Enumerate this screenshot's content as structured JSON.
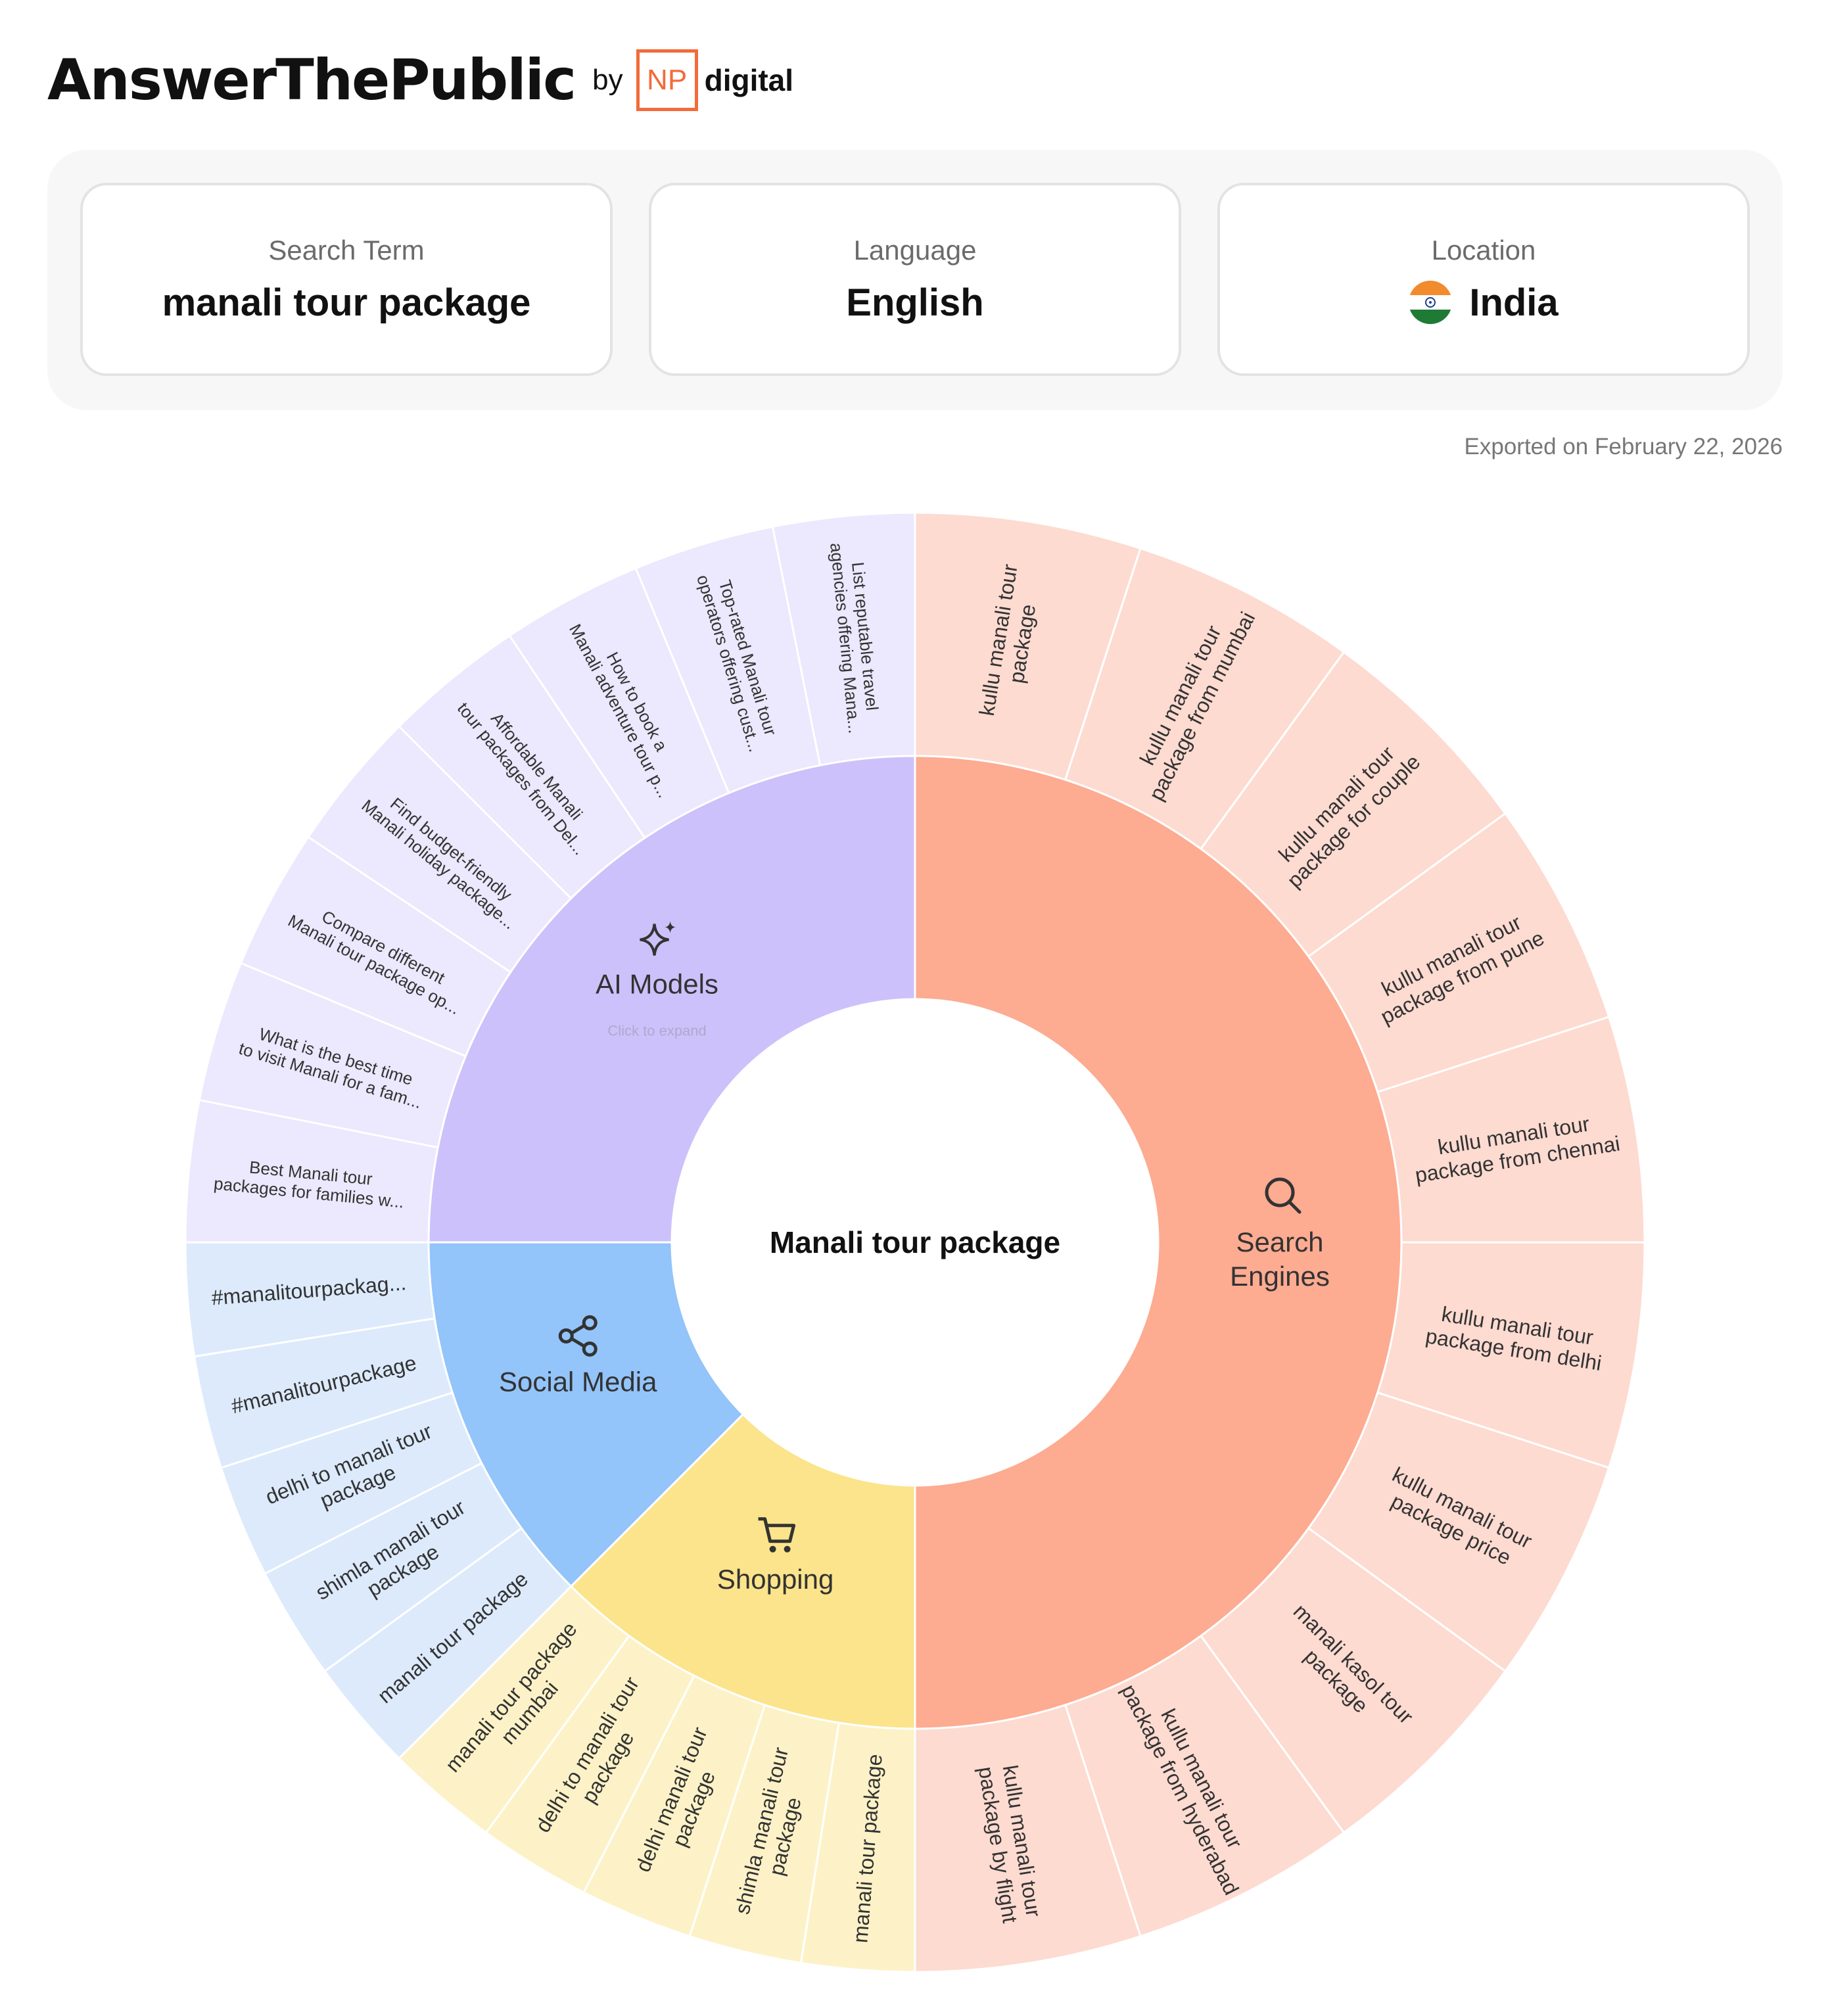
{
  "brand": {
    "name": "AnswerThePublic",
    "by": "by",
    "np": "NP",
    "digital": "digital"
  },
  "filters": {
    "search_term_label": "Search Term",
    "search_term": "manali tour package",
    "language_label": "Language",
    "language": "English",
    "location_label": "Location",
    "location": "India"
  },
  "exported": "Exported on February 22, 2026",
  "center_label": "Manali tour package",
  "colors": {
    "search": "#fdab91",
    "search_light": "#fddbd1",
    "shopping": "#fbe48b",
    "shopping_light": "#fdf2c7",
    "social": "#93c4fa",
    "social_light": "#dceafc",
    "ai": "#cdc1fb",
    "ai_light": "#ece8fd"
  },
  "categories": [
    {
      "key": "search",
      "label": [
        "Search",
        "Engines"
      ],
      "icon": "search-icon",
      "start": 0,
      "end": 180,
      "items": [
        [
          "kullu manali tour",
          "package"
        ],
        [
          "kullu manali tour",
          "package from mumbai"
        ],
        [
          "kullu manali tour",
          "package for couple"
        ],
        [
          "kullu manali tour",
          "package from pune"
        ],
        [
          "kullu manali tour",
          "package from chennai"
        ],
        [
          "kullu manali tour",
          "package from delhi"
        ],
        [
          "kullu manali tour",
          "package price"
        ],
        [
          "manali kasol tour",
          "package"
        ],
        [
          "kullu manali tour",
          "package from hyderabad"
        ],
        [
          "kullu manali tour",
          "package by flight"
        ]
      ]
    },
    {
      "key": "shopping",
      "label": [
        "Shopping"
      ],
      "icon": "cart-icon",
      "start": 180,
      "end": 225,
      "items": [
        [
          "manali tour package"
        ],
        [
          "shimla manali tour",
          "package"
        ],
        [
          "delhi manali tour",
          "package"
        ],
        [
          "delhi to manali tour",
          "package"
        ],
        [
          "manali tour package",
          "mumbai"
        ]
      ]
    },
    {
      "key": "social",
      "label": [
        "Social Media"
      ],
      "icon": "share-icon",
      "start": 225,
      "end": 270,
      "items": [
        [
          "manali tour package"
        ],
        [
          "shimla manali tour",
          "package"
        ],
        [
          "delhi to manali tour",
          "package"
        ],
        [
          "#manalitourpackage"
        ],
        [
          "#manalitourpackag..."
        ]
      ]
    },
    {
      "key": "ai",
      "label": [
        "AI Models"
      ],
      "sub": "Click to expand",
      "icon": "sparkle-icon",
      "start": 270,
      "end": 360,
      "items": [
        [
          "Best Manali tour",
          "packages for families w..."
        ],
        [
          "What is the best time",
          "to visit Manali for a fam..."
        ],
        [
          "Compare different",
          "Manali tour package op..."
        ],
        [
          "Find budget-friendly",
          "Manali holiday package..."
        ],
        [
          "Affordable Manali",
          "tour packages from Del..."
        ],
        [
          "How to book a",
          "Manali adventure tour p..."
        ],
        [
          "Top-rated Manali tour",
          "operators offering cust..."
        ],
        [
          "List reputable travel",
          "agencies offering Mana..."
        ]
      ]
    }
  ]
}
